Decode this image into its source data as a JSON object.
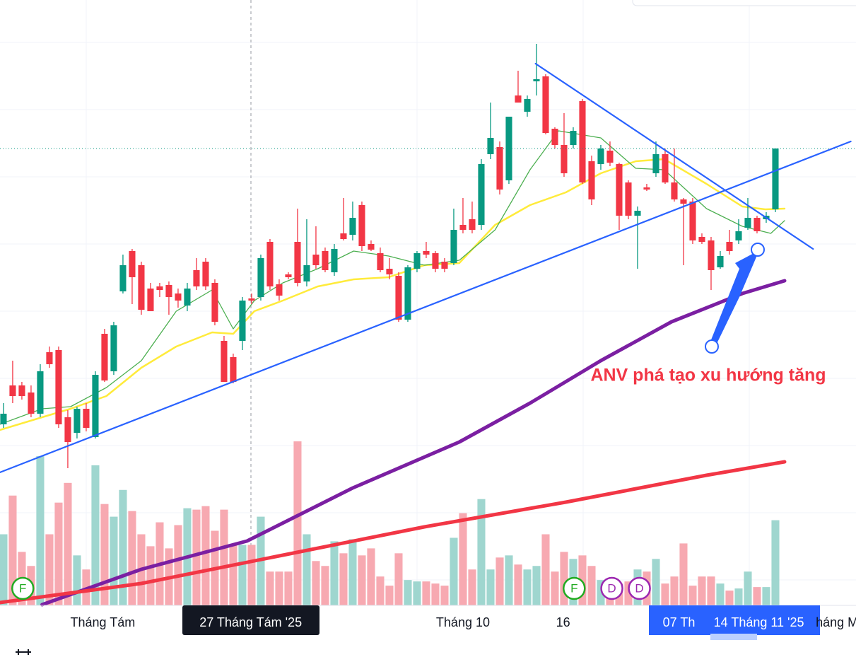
{
  "chart_data": {
    "type": "candlestick",
    "xlim": [
      -0.38,
      92.77
    ],
    "ylim": [
      0,
      86
    ],
    "volume_ylim": [
      0,
      86
    ],
    "up_color": "#089981",
    "down_color": "#f23645",
    "up_volume_color": "#9fd6cf",
    "down_volume_color": "#f7a9b1",
    "open": [
      26.0,
      31.5,
      31.5,
      30.5,
      27.5,
      36.2,
      36.5,
      27.0,
      24.8,
      28.2,
      24.2,
      38.8,
      33.5,
      44.8,
      50.5,
      48.5,
      45.2,
      45.5,
      45.7,
      44.5,
      42.8,
      47.8,
      49.0,
      46.0,
      37.8,
      35.5,
      37.8,
      43.8,
      44.0,
      51.8,
      45.8,
      47.2,
      51.8,
      46.2,
      50.0,
      50.5,
      47.5,
      53.0,
      52.8,
      57.0,
      51.5,
      50.2,
      48.0,
      47.0,
      40.8,
      48.0,
      50.5,
      50.2,
      49.0,
      48.8,
      54.2,
      55.0,
      54.2,
      64.2,
      65.2,
      60.5,
      72.5,
      70.2,
      74.5,
      75.2,
      67.8,
      65.5,
      65.5,
      71.7,
      63.2,
      62.8,
      64.7,
      62.8,
      60.2,
      55.5,
      59.5,
      61.5,
      64.2,
      60.2,
      57.8,
      57.5,
      52.5,
      52.0,
      48.2,
      51.8,
      52.0,
      53.8,
      55.2,
      55.0,
      56.4
    ],
    "high": [
      29.0,
      35.0,
      32.0,
      31.5,
      34.5,
      37.0,
      37.0,
      28.0,
      28.5,
      29.0,
      33.5,
      39.5,
      40.5,
      50.0,
      50.8,
      49.0,
      46.0,
      46.0,
      46.2,
      45.2,
      46.0,
      49.5,
      49.5,
      46.5,
      38.5,
      36.0,
      44.0,
      44.5,
      50.0,
      52.2,
      46.5,
      47.5,
      56.5,
      55.0,
      54.0,
      51.0,
      51.5,
      58.0,
      57.5,
      57.5,
      52.0,
      51.0,
      49.5,
      47.5,
      48.5,
      50.5,
      51.8,
      50.5,
      49.5,
      56.5,
      58.0,
      57.5,
      63.5,
      71.5,
      66.0,
      69.5,
      76.0,
      72.5,
      79.8,
      75.5,
      68.0,
      70.0,
      68.0,
      72.0,
      64.0,
      65.5,
      66.0,
      63.0,
      60.5,
      56.8,
      60.0,
      66.0,
      65.0,
      65.0,
      58.0,
      58.0,
      53.0,
      52.5,
      50.5,
      53.5,
      55.0,
      58.0,
      55.5,
      56.0,
      65.0
    ],
    "low": [
      25.5,
      29.0,
      29.5,
      27.0,
      27.0,
      34.0,
      25.5,
      19.8,
      24.0,
      25.0,
      24.0,
      32.0,
      33.0,
      44.5,
      43.0,
      41.5,
      42.0,
      44.0,
      41.5,
      42.5,
      42.0,
      45.0,
      45.0,
      40.0,
      32.0,
      31.8,
      36.5,
      43.0,
      43.5,
      45.0,
      43.5,
      46.5,
      45.5,
      45.5,
      48.0,
      47.5,
      47.0,
      52.0,
      52.0,
      50.5,
      50.5,
      47.5,
      46.5,
      40.5,
      40.5,
      47.5,
      49.5,
      47.5,
      47.5,
      48.5,
      53.0,
      53.0,
      53.5,
      63.5,
      58.5,
      60.0,
      71.5,
      69.5,
      72.5,
      67.0,
      65.0,
      61.0,
      65.0,
      60.0,
      57.0,
      62.0,
      62.5,
      53.5,
      55.0,
      48.0,
      59.0,
      61.0,
      60.0,
      57.5,
      48.5,
      51.5,
      51.5,
      45.0,
      48.0,
      50.0,
      51.5,
      53.5,
      53.0,
      54.5,
      56.0
    ],
    "close": [
      27.5,
      30.0,
      30.0,
      27.5,
      33.5,
      34.5,
      26.0,
      23.5,
      28.2,
      25.5,
      33.0,
      32.2,
      40.0,
      48.5,
      46.8,
      42.2,
      42.0,
      45.0,
      44.0,
      43.5,
      45.2,
      45.5,
      45.5,
      40.5,
      32.0,
      32.0,
      43.5,
      43.5,
      49.5,
      45.5,
      44.2,
      46.8,
      46.0,
      48.5,
      48.5,
      47.8,
      50.8,
      52.2,
      55.2,
      51.2,
      50.7,
      47.8,
      47.2,
      40.8,
      48.2,
      50.2,
      50.0,
      48.0,
      48.0,
      53.5,
      53.5,
      53.5,
      62.8,
      66.5,
      59.2,
      69.5,
      71.5,
      72.0,
      74.8,
      67.2,
      65.5,
      61.5,
      67.5,
      60.2,
      57.8,
      65.0,
      63.0,
      55.5,
      55.5,
      56.2,
      59.2,
      64.2,
      60.2,
      57.8,
      57.2,
      52.0,
      51.8,
      47.8,
      49.8,
      50.5,
      53.3,
      55.2,
      53.3,
      55.5,
      65.0
    ],
    "volume": [
      10.1,
      15.6,
      7.6,
      5.6,
      21.2,
      10.1,
      14.6,
      17.4,
      7.1,
      5.1,
      19.9,
      14.4,
      12.6,
      16.4,
      13.4,
      10.1,
      8.4,
      11.8,
      8.1,
      11.4,
      13.8,
      13.6,
      14.1,
      10.6,
      13.6,
      8.6,
      8.6,
      8.6,
      12.6,
      4.8,
      4.8,
      4.8,
      23.3,
      10.1,
      6.3,
      5.6,
      9.1,
      7.4,
      9.4,
      7.1,
      8.1,
      4.1,
      2.8,
      7.4,
      3.6,
      3.4,
      3.4,
      3.1,
      2.8,
      9.6,
      13.1,
      5.1,
      15.1,
      5.1,
      6.8,
      7.1,
      5.8,
      5.1,
      5.6,
      10.1,
      4.8,
      7.6,
      6.6,
      7.1,
      5.6,
      3.6,
      3.1,
      3.1,
      3.4,
      5.1,
      4.8,
      6.6,
      3.1,
      4.1,
      8.8,
      2.8,
      4.1,
      4.1,
      3.1,
      2.1,
      2.4,
      4.8,
      2.6,
      2.6,
      12.1
    ],
    "lines": [
      {
        "color": "#7b1fa2",
        "width": 5,
        "x": [
          4.2,
          15,
          26.5,
          38,
          49.6,
          57.3,
          65,
          72.7,
          80.4,
          85
        ],
        "values": [
          0.5,
          5.5,
          9.5,
          17,
          23.5,
          29,
          35,
          40.5,
          44.5,
          46.3
        ]
      },
      {
        "color": "#f23645",
        "width": 5,
        "x": [
          -0.4,
          15,
          30.4,
          45.8,
          61.2,
          76.5,
          85
        ],
        "values": [
          0.8,
          3.5,
          7.5,
          11.5,
          15,
          18.8,
          20.7
        ]
      },
      {
        "color": "#ffeb3b",
        "width": 2.5,
        "x": [
          -0.4,
          4.2,
          7.3,
          11.2,
          15,
          18.8,
          22.7,
          25,
          27.3,
          30.4,
          34.2,
          38.1,
          41.9,
          45.8,
          49.6,
          53.5,
          57.3,
          61.2,
          65,
          68.8,
          71.9,
          76.5,
          80.4,
          82.9,
          85
        ],
        "values": [
          25.2,
          27,
          28.2,
          30,
          34,
          37,
          39,
          38.8,
          42,
          43.5,
          45.5,
          46.5,
          46.8,
          48.5,
          48.8,
          54.2,
          57,
          58.8,
          61.5,
          63.2,
          63.5,
          60,
          56.8,
          56.4,
          56.5
        ]
      },
      {
        "color": "#4caf50",
        "width": 1.3,
        "x": [
          -0.4,
          4.2,
          7.3,
          11.2,
          15,
          18.8,
          22.7,
          25,
          27.3,
          30.4,
          34.2,
          38.1,
          41.9,
          45.8,
          49.6,
          53.5,
          57.3,
          60.4,
          65,
          68.8,
          71.9,
          76.5,
          80.4,
          83.5,
          85
        ],
        "values": [
          26,
          28.2,
          28.5,
          31.2,
          35,
          42,
          45,
          39.5,
          43.5,
          46,
          48,
          50.5,
          49.8,
          48.5,
          49.2,
          53.5,
          62,
          67.5,
          66.5,
          62.2,
          62,
          56.5,
          54,
          53,
          54.8
        ]
      }
    ],
    "trendlines": [
      {
        "color": "#2962ff",
        "x": [
          -0.4,
          92.2
        ],
        "values": [
          19.2,
          66
        ]
      },
      {
        "color": "#2962ff",
        "x": [
          57.9,
          88.1
        ],
        "values": [
          77,
          50.8
        ]
      }
    ],
    "annotation": "ANV phá tạo xu hướng tăng",
    "events": [
      {
        "label": "F",
        "x": 2.1,
        "color": "#22ab22"
      },
      {
        "label": "F",
        "x": 62.1,
        "color": "#22ab22"
      },
      {
        "label": "D",
        "x": 66.2,
        "color": "#9c27b0"
      },
      {
        "label": "D",
        "x": 69.2,
        "color": "#9c27b0"
      }
    ],
    "xlabels": [
      {
        "label": "Tháng Tám",
        "x": 10.8
      },
      {
        "label": "Tháng 10",
        "x": 50
      },
      {
        "label": "16",
        "x": 60.9
      },
      {
        "label": "háng M",
        "x": 90.7
      }
    ],
    "crosshair_label": {
      "label": "27 Tháng Tám '25",
      "x": 26.9
    },
    "range_labels": [
      {
        "label": "07 Th",
        "x": 73.5
      },
      {
        "label": "14 Tháng 11 '25",
        "x": 82.2
      }
    ]
  }
}
